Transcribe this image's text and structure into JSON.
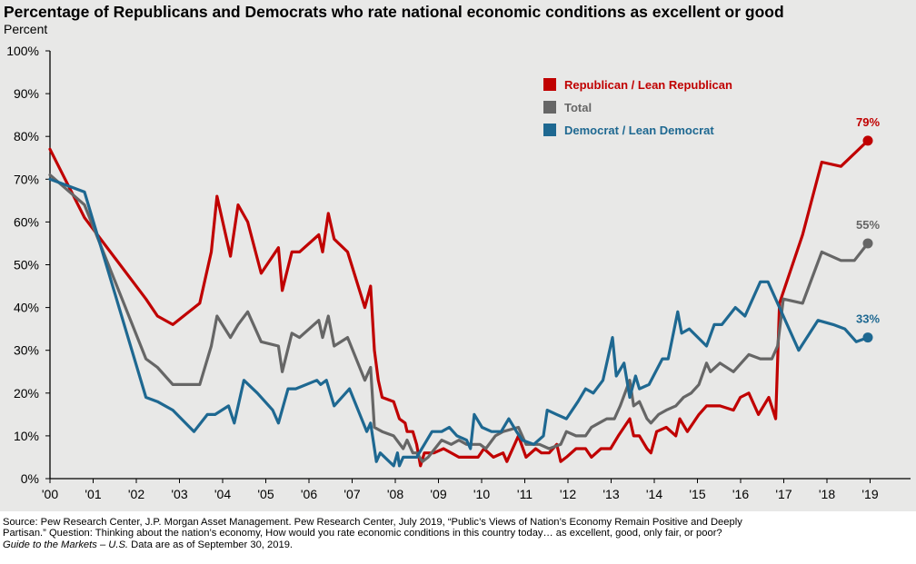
{
  "title": "Percentage of Republicans and Democrats who rate national economic conditions as excellent or good",
  "unit_label": "Percent",
  "footnote": {
    "line1": "Source: Pew Research Center, J.P. Morgan Asset Management. Pew Research Center, July 2019, “Public’s Views of Nation’s Economy Remain Positive and Deeply Partisan.” Question: Thinking about the nation’s economy, How would you rate economic conditions in this country today… as excellent, good, only fair, or poor?",
    "guide_italic": "Guide to the Markets – U.S.",
    "data_asof": " Data are as of September 30, 2019."
  },
  "chart_data": {
    "type": "line",
    "title": "Percentage of Republicans and Democrats who rate national economic conditions as excellent or good",
    "xlabel": "",
    "ylabel": "Percent",
    "ylim": [
      0,
      100
    ],
    "xlim": [
      2000,
      2019.7
    ],
    "y_ticks": [
      0,
      10,
      20,
      30,
      40,
      50,
      60,
      70,
      80,
      90,
      100
    ],
    "y_tick_labels": [
      "0%",
      "10%",
      "20%",
      "30%",
      "40%",
      "50%",
      "60%",
      "70%",
      "80%",
      "90%",
      "100%"
    ],
    "x_ticks": [
      2000,
      2001,
      2002,
      2003,
      2004,
      2005,
      2006,
      2007,
      2008,
      2009,
      2010,
      2011,
      2012,
      2013,
      2014,
      2015,
      2016,
      2017,
      2018,
      2019
    ],
    "x_tick_labels": [
      "'00",
      "'01",
      "'02",
      "'03",
      "'04",
      "'05",
      "'06",
      "'07",
      "'08",
      "'09",
      "'10",
      "'11",
      "'12",
      "'13",
      "'14",
      "'15",
      "'16",
      "'17",
      "'18",
      "'19"
    ],
    "grid": false,
    "legend_position": "top-center",
    "series": [
      {
        "name": "Republican / Lean Republican",
        "color": "#c00000",
        "end_label": "79%",
        "points": [
          [
            2000.0,
            77
          ],
          [
            2000.9,
            61
          ],
          [
            2002.5,
            42
          ],
          [
            2002.8,
            38
          ],
          [
            2003.2,
            36
          ],
          [
            2003.9,
            41
          ],
          [
            2004.2,
            53
          ],
          [
            2004.35,
            66
          ],
          [
            2004.7,
            52
          ],
          [
            2004.9,
            64
          ],
          [
            2005.15,
            60
          ],
          [
            2005.5,
            48
          ],
          [
            2005.95,
            54
          ],
          [
            2006.05,
            44
          ],
          [
            2006.3,
            53
          ],
          [
            2006.5,
            53
          ],
          [
            2007.0,
            57
          ],
          [
            2007.1,
            53
          ],
          [
            2007.25,
            62
          ],
          [
            2007.4,
            56
          ],
          [
            2007.75,
            53
          ],
          [
            2008.2,
            40
          ],
          [
            2008.35,
            45
          ],
          [
            2008.45,
            30
          ],
          [
            2008.55,
            23
          ],
          [
            2008.65,
            19
          ],
          [
            2008.95,
            18
          ],
          [
            2009.1,
            14
          ],
          [
            2009.25,
            13
          ],
          [
            2009.3,
            11
          ],
          [
            2009.45,
            11
          ],
          [
            2009.55,
            8
          ],
          [
            2009.65,
            3
          ],
          [
            2009.75,
            6
          ],
          [
            2010.0,
            6
          ],
          [
            2010.25,
            7
          ],
          [
            2010.65,
            5
          ],
          [
            2011.15,
            5
          ],
          [
            2011.3,
            7
          ],
          [
            2011.55,
            5
          ],
          [
            2011.8,
            6
          ],
          [
            2011.9,
            4
          ],
          [
            2012.2,
            10
          ],
          [
            2012.4,
            5
          ],
          [
            2012.65,
            7
          ],
          [
            2012.8,
            6
          ],
          [
            2013.0,
            6
          ],
          [
            2013.2,
            8
          ],
          [
            2013.3,
            4
          ],
          [
            2013.45,
            5
          ],
          [
            2013.7,
            7
          ],
          [
            2013.95,
            7
          ],
          [
            2014.1,
            5
          ],
          [
            2014.35,
            7
          ],
          [
            2014.6,
            7
          ],
          [
            2014.8,
            10
          ],
          [
            2015.1,
            14
          ],
          [
            2015.2,
            10
          ],
          [
            2015.35,
            10
          ],
          [
            2015.55,
            7
          ],
          [
            2015.65,
            6
          ],
          [
            2015.8,
            11
          ],
          [
            2016.05,
            12
          ],
          [
            2016.3,
            10
          ],
          [
            2016.4,
            14
          ],
          [
            2016.6,
            11
          ],
          [
            2016.9,
            15
          ],
          [
            2017.1,
            17
          ],
          [
            2017.45,
            17
          ],
          [
            2017.8,
            16
          ],
          [
            2017.98,
            19
          ],
          [
            2018.2,
            20
          ],
          [
            2018.45,
            15
          ],
          [
            2018.72,
            19
          ],
          [
            2018.9,
            14
          ],
          [
            2019.0,
            41
          ],
          [
            2019.6,
            57
          ],
          [
            2020.1,
            74
          ],
          [
            2020.6,
            73
          ],
          [
            2021.3,
            79
          ]
        ]
      },
      {
        "name": "Total",
        "color": "#666666",
        "end_label": "55%",
        "points": [
          [
            2000.0,
            71
          ],
          [
            2000.9,
            64
          ],
          [
            2002.5,
            28
          ],
          [
            2002.8,
            26
          ],
          [
            2003.2,
            22
          ],
          [
            2003.9,
            22
          ],
          [
            2004.2,
            31
          ],
          [
            2004.35,
            38
          ],
          [
            2004.7,
            33
          ],
          [
            2004.9,
            36
          ],
          [
            2005.15,
            39
          ],
          [
            2005.5,
            32
          ],
          [
            2005.95,
            31
          ],
          [
            2006.05,
            25
          ],
          [
            2006.3,
            34
          ],
          [
            2006.5,
            33
          ],
          [
            2007.0,
            37
          ],
          [
            2007.1,
            33
          ],
          [
            2007.25,
            38
          ],
          [
            2007.4,
            31
          ],
          [
            2007.75,
            33
          ],
          [
            2008.2,
            23
          ],
          [
            2008.35,
            26
          ],
          [
            2008.45,
            12
          ],
          [
            2008.65,
            11
          ],
          [
            2008.95,
            10
          ],
          [
            2009.2,
            7
          ],
          [
            2009.3,
            9
          ],
          [
            2009.45,
            6
          ],
          [
            2009.55,
            6
          ],
          [
            2009.7,
            4
          ],
          [
            2009.85,
            5
          ],
          [
            2010.2,
            9
          ],
          [
            2010.45,
            8
          ],
          [
            2010.65,
            9
          ],
          [
            2010.85,
            8
          ],
          [
            2011.2,
            8
          ],
          [
            2011.35,
            7
          ],
          [
            2011.6,
            10
          ],
          [
            2011.8,
            11
          ],
          [
            2012.2,
            12
          ],
          [
            2012.4,
            8
          ],
          [
            2012.6,
            8
          ],
          [
            2012.75,
            8
          ],
          [
            2013.0,
            7
          ],
          [
            2013.3,
            8
          ],
          [
            2013.45,
            11
          ],
          [
            2013.7,
            10
          ],
          [
            2013.95,
            10
          ],
          [
            2014.1,
            12
          ],
          [
            2014.3,
            13
          ],
          [
            2014.5,
            14
          ],
          [
            2014.7,
            14
          ],
          [
            2014.85,
            17
          ],
          [
            2015.1,
            23
          ],
          [
            2015.2,
            17
          ],
          [
            2015.35,
            18
          ],
          [
            2015.55,
            14
          ],
          [
            2015.65,
            13
          ],
          [
            2015.85,
            15
          ],
          [
            2016.05,
            16
          ],
          [
            2016.3,
            17
          ],
          [
            2016.5,
            19
          ],
          [
            2016.7,
            20
          ],
          [
            2016.9,
            22
          ],
          [
            2017.1,
            27
          ],
          [
            2017.2,
            25
          ],
          [
            2017.45,
            27
          ],
          [
            2017.8,
            25
          ],
          [
            2018.0,
            27
          ],
          [
            2018.2,
            29
          ],
          [
            2018.5,
            28
          ],
          [
            2018.8,
            28
          ],
          [
            2018.95,
            31
          ],
          [
            2019.1,
            42
          ],
          [
            2019.6,
            41
          ],
          [
            2020.1,
            53
          ],
          [
            2020.6,
            51
          ],
          [
            2020.95,
            51
          ],
          [
            2021.3,
            55
          ]
        ]
      },
      {
        "name": "Democrat / Lean Democrat",
        "color": "#1e6891",
        "end_label": "33%",
        "points": [
          [
            2000.0,
            70
          ],
          [
            2000.9,
            67
          ],
          [
            2002.5,
            19
          ],
          [
            2002.8,
            18
          ],
          [
            2003.2,
            16
          ],
          [
            2003.75,
            11
          ],
          [
            2004.1,
            15
          ],
          [
            2004.3,
            15
          ],
          [
            2004.65,
            17
          ],
          [
            2004.8,
            13
          ],
          [
            2005.05,
            23
          ],
          [
            2005.4,
            20
          ],
          [
            2005.8,
            16
          ],
          [
            2005.95,
            13
          ],
          [
            2006.2,
            21
          ],
          [
            2006.4,
            21
          ],
          [
            2006.95,
            23
          ],
          [
            2007.05,
            22
          ],
          [
            2007.2,
            23
          ],
          [
            2007.4,
            17
          ],
          [
            2007.8,
            21
          ],
          [
            2008.25,
            11
          ],
          [
            2008.35,
            13
          ],
          [
            2008.5,
            4
          ],
          [
            2008.6,
            6
          ],
          [
            2008.95,
            3
          ],
          [
            2009.05,
            6
          ],
          [
            2009.1,
            3
          ],
          [
            2009.2,
            5
          ],
          [
            2009.35,
            5
          ],
          [
            2009.55,
            5
          ],
          [
            2009.75,
            8
          ],
          [
            2009.95,
            11
          ],
          [
            2010.2,
            11
          ],
          [
            2010.4,
            12
          ],
          [
            2010.6,
            10
          ],
          [
            2010.85,
            9
          ],
          [
            2010.95,
            7
          ],
          [
            2011.05,
            15
          ],
          [
            2011.25,
            12
          ],
          [
            2011.5,
            11
          ],
          [
            2011.75,
            11
          ],
          [
            2011.95,
            14
          ],
          [
            2012.15,
            11
          ],
          [
            2012.3,
            9
          ],
          [
            2012.6,
            8
          ],
          [
            2012.85,
            10
          ],
          [
            2012.95,
            16
          ],
          [
            2013.2,
            15
          ],
          [
            2013.45,
            14
          ],
          [
            2013.75,
            18
          ],
          [
            2013.95,
            21
          ],
          [
            2014.15,
            20
          ],
          [
            2014.4,
            23
          ],
          [
            2014.65,
            33
          ],
          [
            2014.75,
            24
          ],
          [
            2014.95,
            27
          ],
          [
            2015.1,
            19
          ],
          [
            2015.25,
            24
          ],
          [
            2015.35,
            21
          ],
          [
            2015.6,
            22
          ],
          [
            2015.95,
            28
          ],
          [
            2016.1,
            28
          ],
          [
            2016.35,
            39
          ],
          [
            2016.45,
            34
          ],
          [
            2016.65,
            35
          ],
          [
            2017.1,
            31
          ],
          [
            2017.3,
            36
          ],
          [
            2017.5,
            36
          ],
          [
            2017.85,
            40
          ],
          [
            2018.1,
            38
          ],
          [
            2018.5,
            46
          ],
          [
            2018.7,
            46
          ],
          [
            2019.5,
            30
          ],
          [
            2020.0,
            37
          ],
          [
            2020.4,
            36
          ],
          [
            2020.7,
            35
          ],
          [
            2021.0,
            32
          ],
          [
            2021.3,
            33
          ]
        ]
      }
    ]
  }
}
